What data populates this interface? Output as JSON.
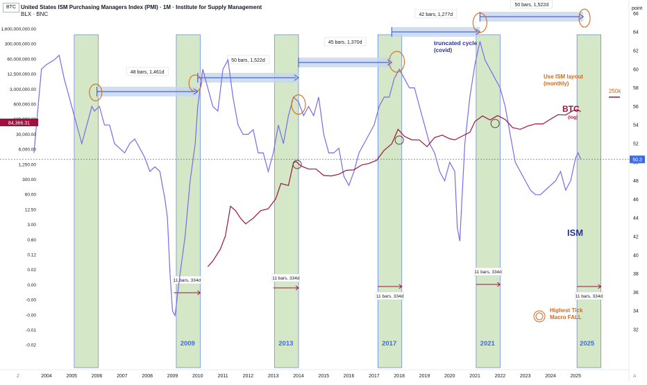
{
  "header": {
    "symbol_box": "BTC",
    "title": "United States ISM Purchasing Managers Index (PMI) · 1M · Institute for Supply Management",
    "subtitle": "BLX · BNC"
  },
  "axes": {
    "right_unit": "point",
    "left_ticks": [
      "1,600,000,000.00",
      "300,000,000.00",
      "60,000,000.00",
      "12,500,000.00",
      "3,000,000.00",
      "600,000.00",
      "130,000.00",
      "30,000.00",
      "6,000.00",
      "1,250.00",
      "300.00",
      "60.00",
      "12.50",
      "3.00",
      "0.60",
      "0.12",
      "0.02",
      "0.00",
      "-0.00",
      "-0.00",
      "-0.01",
      "-0.02"
    ],
    "right_ticks": [
      "66",
      "64",
      "62",
      "60",
      "58",
      "56",
      "54",
      "52",
      "50",
      "48",
      "46",
      "44",
      "42",
      "40",
      "38",
      "36",
      "34",
      "32"
    ],
    "x_ticks": [
      "2004",
      "2005",
      "2006",
      "2007",
      "2008",
      "2009",
      "2010",
      "2011",
      "2012",
      "2013",
      "2014",
      "2015",
      "2016",
      "2017",
      "2018",
      "2019",
      "2020",
      "2021",
      "2022",
      "2023",
      "2024",
      "2025"
    ],
    "btc_price_label": "84,366.31",
    "ism_value_label": "50.3",
    "corner_left": "Z",
    "corner_right": "A"
  },
  "annotations": {
    "measures": [
      "48 bars, 1,461d",
      "50 bars, 1,522d",
      "45 bars, 1,370d",
      "42 bars, 1,277d",
      "50 bars, 1,522d"
    ],
    "short_measure": "11 bars, 334d",
    "cycle_years": [
      "2009",
      "2013",
      "2017",
      "2021",
      "2025"
    ],
    "truncated_line1": "truncated cycle",
    "truncated_line2": "(covid)",
    "ism_layout_line1": "Use ISM layout",
    "ism_layout_line2": "(monthly)",
    "btc_label": "BTC",
    "btc_log": "(log)",
    "label_250k": "250k",
    "ism_label": "ISM",
    "highest_tick_line1": "Highest Tick",
    "highest_tick_line2": "Macro FALL"
  },
  "colors": {
    "ism": "#7b68ee",
    "btc": "#a0103f",
    "arrow": "#4169e1",
    "band_fill": "#d4e8c8",
    "circle": "#d2691e",
    "short_arrow": "#a0103f"
  },
  "chart_data": {
    "type": "line",
    "x_unit": "year",
    "right_axis": "ISM PMI (point)",
    "series": [
      {
        "name": "ISM",
        "x": [
          2003.5,
          2003.8,
          2004.0,
          2004.3,
          2004.5,
          2004.7,
          2004.9,
          2005.1,
          2005.3,
          2005.4,
          2005.6,
          2005.8,
          2005.9,
          2006.1,
          2006.3,
          2006.5,
          2006.7,
          2006.9,
          2007.1,
          2007.3,
          2007.5,
          2007.7,
          2007.9,
          2008.1,
          2008.3,
          2008.5,
          2008.7,
          2008.8,
          2008.9,
          2009.0,
          2009.1,
          2009.3,
          2009.5,
          2009.7,
          2009.9,
          2010.0,
          2010.2,
          2010.4,
          2010.6,
          2010.8,
          2011.0,
          2011.2,
          2011.4,
          2011.6,
          2011.8,
          2012.0,
          2012.2,
          2012.4,
          2012.6,
          2012.8,
          2013.0,
          2013.2,
          2013.4,
          2013.6,
          2013.8,
          2014.0,
          2014.2,
          2014.4,
          2014.6,
          2014.8,
          2015.0,
          2015.2,
          2015.4,
          2015.6,
          2015.8,
          2016.0,
          2016.2,
          2016.4,
          2016.6,
          2016.8,
          2017.0,
          2017.2,
          2017.4,
          2017.6,
          2017.8,
          2018.0,
          2018.2,
          2018.4,
          2018.6,
          2018.8,
          2019.0,
          2019.2,
          2019.4,
          2019.6,
          2019.8,
          2020.0,
          2020.2,
          2020.3,
          2020.4,
          2020.6,
          2020.8,
          2021.0,
          2021.2,
          2021.4,
          2021.6,
          2021.8,
          2022.0,
          2022.2,
          2022.4,
          2022.6,
          2022.8,
          2023.0,
          2023.2,
          2023.4,
          2023.6,
          2023.8,
          2024.0,
          2024.2,
          2024.4,
          2024.6,
          2024.8,
          2025.0,
          2025.1,
          2025.2
        ],
        "y": [
          51,
          60,
          60.5,
          61,
          61.5,
          59,
          57,
          55,
          53,
          52,
          54,
          56,
          55.5,
          56,
          54,
          54,
          52,
          51.5,
          51,
          52,
          52.5,
          51.5,
          50.5,
          49,
          49.5,
          49,
          46,
          44,
          38,
          34,
          33.5,
          38,
          42,
          48,
          52,
          56,
          60,
          58,
          56,
          55.5,
          60,
          61,
          57,
          54,
          53,
          53,
          53.5,
          51,
          51,
          49,
          51,
          54,
          52,
          55,
          57,
          56.5,
          55,
          56,
          55,
          57,
          53,
          51,
          51,
          51.5,
          48.5,
          47.5,
          49,
          51,
          52,
          53,
          54,
          56,
          57,
          57,
          59,
          60,
          59,
          58,
          58,
          56,
          54,
          52,
          51,
          49,
          48,
          50,
          49,
          43,
          41.5,
          52,
          57,
          60.5,
          63,
          61,
          60,
          59,
          58,
          56,
          53,
          50,
          49,
          48,
          47,
          46.5,
          46.5,
          47,
          47.5,
          48,
          49,
          47,
          48,
          50.5,
          51,
          50.3
        ]
      },
      {
        "name": "BTC",
        "x": [
          2010.4,
          2010.6,
          2010.9,
          2011.1,
          2011.3,
          2011.5,
          2011.7,
          2011.9,
          2012.2,
          2012.5,
          2012.8,
          2013.1,
          2013.3,
          2013.6,
          2013.8,
          2013.9,
          2014.1,
          2014.4,
          2014.7,
          2015.0,
          2015.3,
          2015.6,
          2015.9,
          2016.2,
          2016.5,
          2016.8,
          2017.1,
          2017.4,
          2017.7,
          2017.95,
          2018.2,
          2018.5,
          2018.8,
          2019.1,
          2019.4,
          2019.7,
          2020.0,
          2020.2,
          2020.5,
          2020.8,
          2021.0,
          2021.3,
          2021.6,
          2021.9,
          2022.2,
          2022.5,
          2022.8,
          2023.1,
          2023.4,
          2023.7,
          2024.0,
          2024.3,
          2024.6,
          2024.9,
          2025.1,
          2025.2
        ],
        "y": [
          0.06,
          0.1,
          0.3,
          1,
          15,
          10,
          5,
          3,
          5,
          10,
          12,
          30,
          120,
          100,
          800,
          900,
          600,
          450,
          450,
          250,
          240,
          280,
          400,
          420,
          650,
          750,
          1000,
          2500,
          4500,
          17000,
          9000,
          6500,
          6400,
          3500,
          8000,
          10000,
          7200,
          6500,
          9200,
          13000,
          35000,
          58000,
          40000,
          60000,
          42000,
          20000,
          17000,
          23000,
          28000,
          28000,
          43000,
          65000,
          63000,
          95000,
          102000,
          84366.31
        ]
      }
    ]
  }
}
